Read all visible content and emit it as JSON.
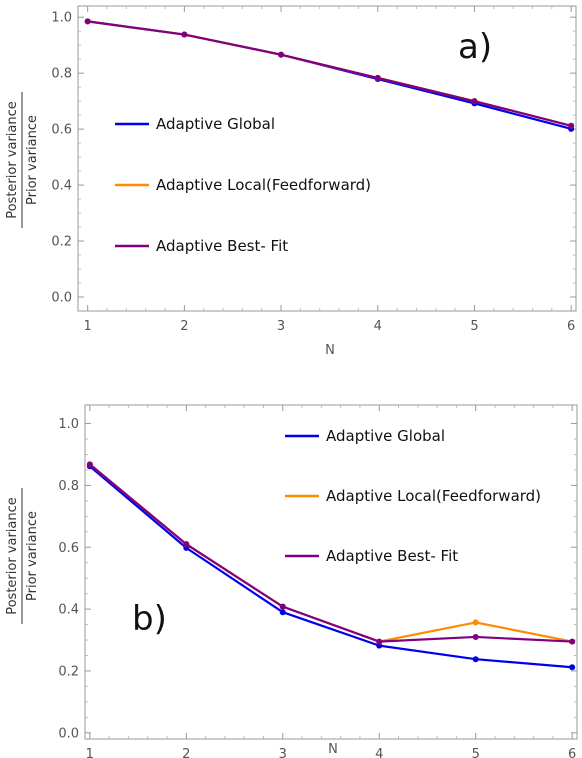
{
  "chart_data": [
    {
      "type": "line",
      "panel_label": "a)",
      "x": [
        1,
        2,
        3,
        4,
        5,
        6
      ],
      "xlabel": "N",
      "ylabel_top": "Posterior variance",
      "ylabel_bottom": "Prior variance",
      "xlim": [
        0.9,
        6.05
      ],
      "ylim": [
        -0.05,
        1.04
      ],
      "xticks": [
        "1",
        "2",
        "3",
        "4",
        "5",
        "6"
      ],
      "yticks": [
        "0.0",
        "0.2",
        "0.4",
        "0.6",
        "0.8",
        "1.0"
      ],
      "grid": false,
      "legend_position": "left",
      "series": [
        {
          "name": "Adaptive Global",
          "color": "#0000ee",
          "values": [
            0.985,
            0.938,
            0.866,
            0.779,
            0.692,
            0.601
          ]
        },
        {
          "name": "Adaptive Local(Feedforward)",
          "color": "#ff8c00",
          "values": [
            0.985,
            0.938,
            0.866,
            0.783,
            0.7,
            0.612
          ]
        },
        {
          "name": "Adaptive Best- Fit",
          "color": "#800080",
          "values": [
            0.985,
            0.938,
            0.866,
            0.783,
            0.7,
            0.612
          ]
        }
      ]
    },
    {
      "type": "line",
      "panel_label": "b)",
      "x": [
        1,
        2,
        3,
        4,
        5,
        6
      ],
      "xlabel": "N",
      "ylabel_top": "Posterior variance",
      "ylabel_bottom": "Prior variance",
      "xlim": [
        0.95,
        6.05
      ],
      "ylim": [
        -0.02,
        1.06
      ],
      "xticks": [
        "1",
        "2",
        "3",
        "4",
        "5",
        "6"
      ],
      "yticks": [
        "0.0",
        "0.2",
        "0.4",
        "0.6",
        "0.8",
        "1.0"
      ],
      "grid": false,
      "legend_position": "top-right",
      "series": [
        {
          "name": "Adaptive Global",
          "color": "#0000ee",
          "values": [
            0.862,
            0.598,
            0.39,
            0.282,
            0.238,
            0.212
          ]
        },
        {
          "name": "Adaptive Local(Feedforward)",
          "color": "#ff8c00",
          "values": [
            0.868,
            0.61,
            0.408,
            0.295,
            0.357,
            0.295
          ]
        },
        {
          "name": "Adaptive Best- Fit",
          "color": "#800080",
          "values": [
            0.868,
            0.61,
            0.408,
            0.295,
            0.31,
            0.295
          ]
        }
      ]
    }
  ]
}
